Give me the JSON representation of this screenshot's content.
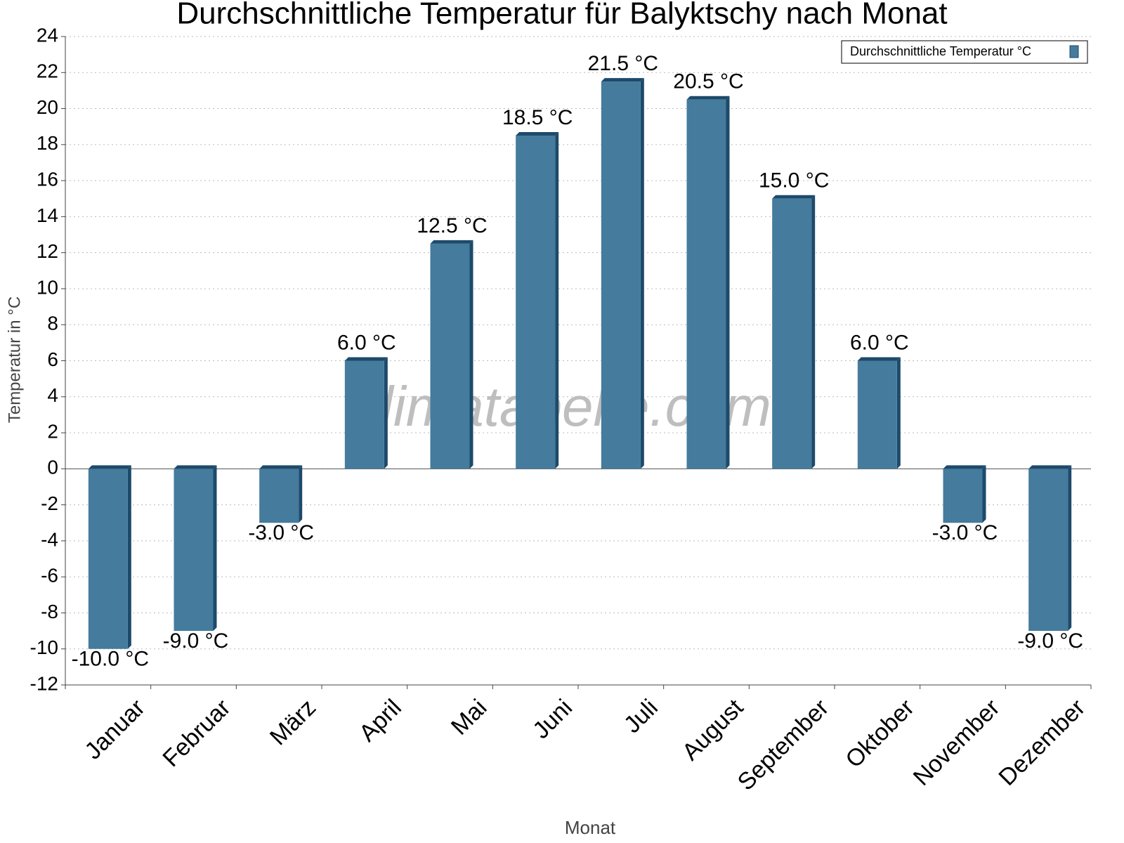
{
  "chart_data": {
    "type": "bar",
    "title": "Durchschnittliche Temperatur für Balyktschy nach Monat",
    "x_label": "Monat",
    "y_label": "Temperatur in °C",
    "watermark": "klimatabelle.com",
    "categories": [
      "Januar",
      "Februar",
      "März",
      "April",
      "Mai",
      "Juni",
      "Juli",
      "August",
      "September",
      "Oktober",
      "November",
      "Dezember"
    ],
    "series": [
      {
        "name": "Durchschnittliche Temperatur °C",
        "color": "#457b9d",
        "values": [
          -10,
          -9,
          -3,
          6,
          12.5,
          18.5,
          21.5,
          20.5,
          15,
          6,
          -3,
          -9
        ],
        "value_labels": [
          "-10.0 °C",
          "-9.0 °C",
          "-3.0 °C",
          "6.0 °C",
          "12.5 °C",
          "18.5 °C",
          "21.5 °C",
          "20.5 °C",
          "15.0 °C",
          "6.0 °C",
          "-3.0 °C",
          "-9.0 °C"
        ]
      }
    ],
    "ylim": [
      -12,
      24
    ],
    "yticks": [
      -12,
      -10,
      -8,
      -6,
      -4,
      -2,
      0,
      2,
      4,
      6,
      8,
      10,
      12,
      14,
      16,
      18,
      20,
      22,
      24
    ],
    "grid": true,
    "legend": "top-right"
  }
}
